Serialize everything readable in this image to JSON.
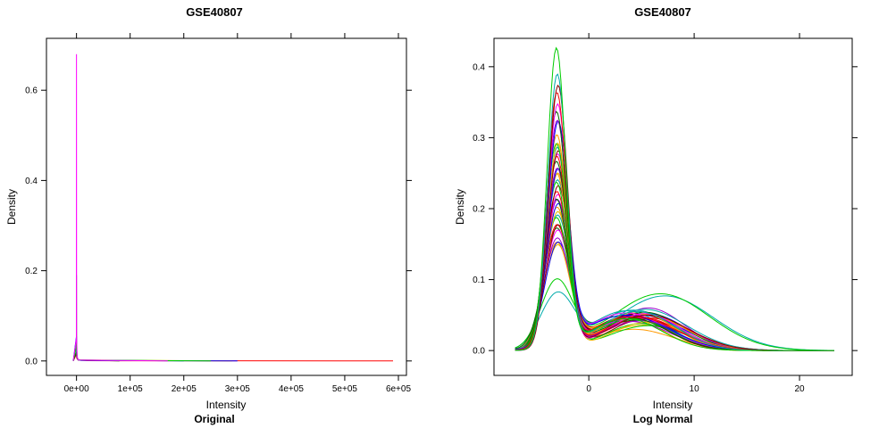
{
  "chart_data": [
    {
      "type": "line",
      "title": "GSE40807",
      "xlabel": "Intensity",
      "ylabel": "Density",
      "subtitle": "Original",
      "xlim": [
        -56000,
        615000
      ],
      "ylim": [
        -0.032,
        0.715
      ],
      "x_ticks": [
        0,
        100000,
        200000,
        300000,
        400000,
        500000,
        600000
      ],
      "x_tick_labels": [
        "0e+00",
        "1e+05",
        "2e+05",
        "3e+05",
        "4e+05",
        "5e+05",
        "6e+05"
      ],
      "y_ticks": [
        0.0,
        0.2,
        0.4,
        0.6
      ],
      "y_tick_labels": [
        "0.0",
        "0.2",
        "0.4",
        "0.6"
      ],
      "series": [
        {
          "color": "#ff00ff",
          "x": [
            -6000,
            -200,
            0,
            200,
            1200,
            3000,
            170000
          ],
          "y": [
            0,
            0.05,
            0.68,
            0.05,
            0.01,
            0.002,
            0
          ]
        },
        {
          "color": "#00cc00",
          "x": [
            -6000,
            -200,
            0,
            250,
            1500,
            3000,
            250000
          ],
          "y": [
            0,
            0.03,
            0.19,
            0.03,
            0.008,
            0.002,
            0
          ]
        },
        {
          "color": "#0000ff",
          "x": [
            -6000,
            0,
            300,
            1200,
            3000,
            8000,
            300000
          ],
          "y": [
            0,
            0.055,
            0.02,
            0.008,
            0.003,
            0.001,
            0
          ]
        },
        {
          "color": "#00aaaa",
          "x": [
            -6000,
            0,
            300,
            1500,
            3000,
            200000
          ],
          "y": [
            0,
            0.045,
            0.015,
            0.006,
            0.002,
            0
          ]
        },
        {
          "color": "#ff9900",
          "x": [
            -6000,
            0,
            400,
            3000,
            290000
          ],
          "y": [
            0,
            0.04,
            0.012,
            0.002,
            0
          ]
        },
        {
          "color": "#006400",
          "x": [
            -6000,
            0,
            400,
            3000,
            80000
          ],
          "y": [
            0,
            0.02,
            0.01,
            0.002,
            0
          ]
        },
        {
          "color": "#ff0000",
          "x": [
            -6000,
            0,
            500,
            3000,
            20000,
            590000
          ],
          "y": [
            0,
            0.015,
            0.006,
            0.002,
            0.0005,
            0
          ]
        }
      ]
    },
    {
      "type": "line",
      "title": "GSE40807",
      "xlabel": "Intensity",
      "ylabel": "Density",
      "subtitle": "Log Normal",
      "xlim": [
        -9,
        25
      ],
      "ylim": [
        -0.035,
        0.44
      ],
      "x_ticks": [
        0,
        10,
        20
      ],
      "x_tick_labels": [
        "0",
        "10",
        "20"
      ],
      "y_ticks": [
        0.0,
        0.1,
        0.2,
        0.3,
        0.4
      ],
      "y_tick_labels": [
        "0.0",
        "0.1",
        "0.2",
        "0.3",
        "0.4"
      ],
      "curve_family": {
        "palette": [
          "#ff0000",
          "#00cc00",
          "#0000ff",
          "#ff00ff",
          "#00aaaa",
          "#ff9900",
          "#006400",
          "#8b0000",
          "#e6b800",
          "#9900cc"
        ],
        "peak_left": [
          0.42,
          0.384,
          0.37,
          0.355,
          0.345,
          0.33,
          0.32,
          0.31,
          0.3,
          0.29,
          0.285,
          0.28,
          0.275,
          0.27,
          0.265,
          0.26,
          0.255,
          0.25,
          0.245,
          0.24,
          0.235,
          0.23,
          0.225,
          0.22,
          0.215,
          0.21,
          0.205,
          0.2,
          0.195,
          0.19,
          0.185,
          0.18,
          0.175,
          0.17,
          0.165,
          0.16,
          0.155,
          0.15,
          0.148,
          0.145,
          0.093,
          0.076
        ],
        "peak_right": [
          0.045,
          0.055,
          0.05,
          0.048,
          0.052,
          0.046,
          0.042,
          0.05,
          0.055,
          0.04,
          0.044,
          0.058,
          0.05,
          0.047,
          0.053,
          0.043,
          0.06,
          0.049,
          0.051,
          0.045,
          0.038,
          0.056,
          0.052,
          0.046,
          0.048,
          0.054,
          0.041,
          0.05,
          0.047,
          0.053,
          0.035,
          0.057,
          0.044,
          0.049,
          0.042,
          0.05,
          0.046,
          0.052,
          0.03,
          0.036,
          0.08,
          0.077
        ],
        "range": [
          -7.0,
          23.3
        ]
      }
    }
  ]
}
